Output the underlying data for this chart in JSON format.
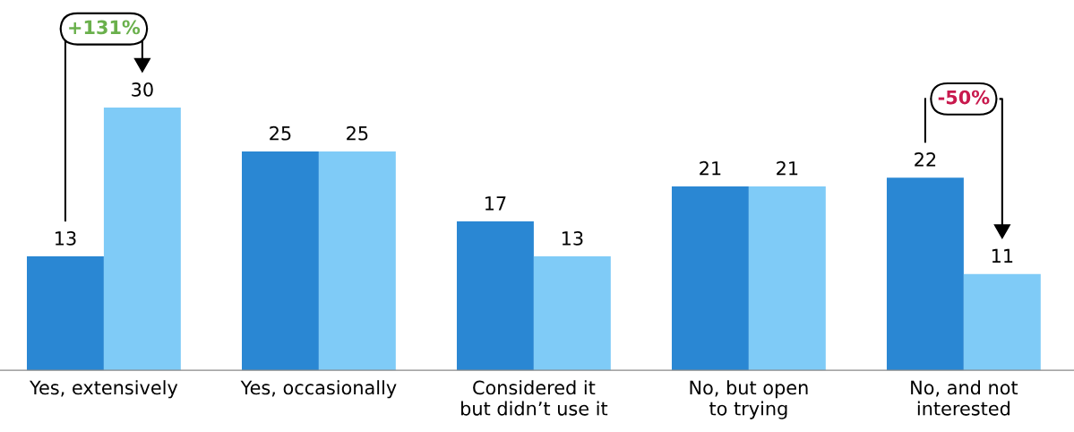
{
  "chart_data": {
    "type": "bar",
    "categories": [
      "Yes, extensively",
      "Yes, occasionally",
      "Considered it\nbut didn’t use it",
      "No, but open\nto trying",
      "No, and not\ninterested"
    ],
    "series": [
      {
        "color": "#2a87d3",
        "values": [
          13,
          25,
          17,
          21,
          22
        ]
      },
      {
        "color": "#7fcbf7",
        "values": [
          30,
          25,
          13,
          21,
          11
        ]
      }
    ],
    "data_labels": true,
    "grid": false,
    "legend": false,
    "annotations": [
      "+131%",
      "-50%"
    ]
  }
}
